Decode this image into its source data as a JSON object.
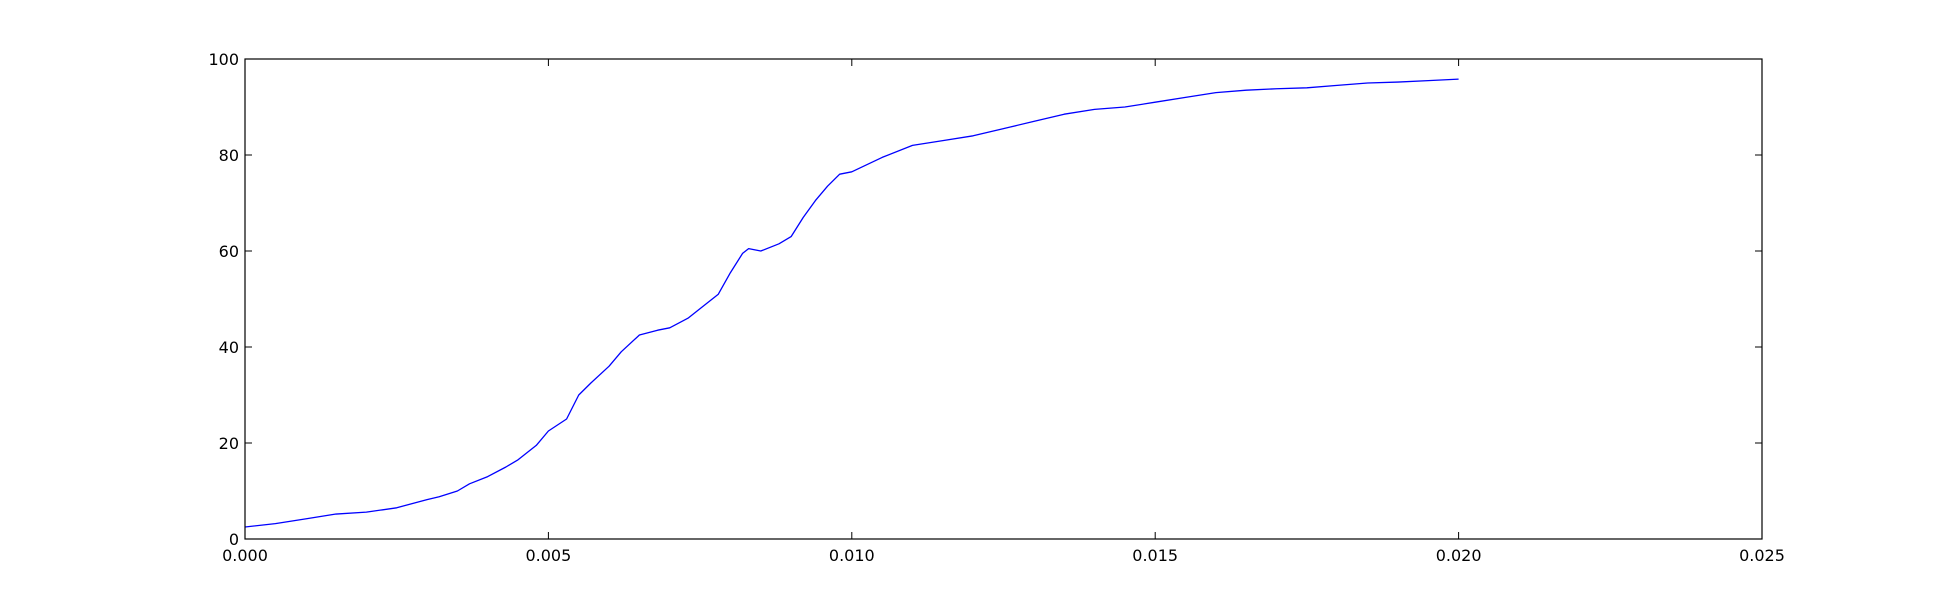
{
  "chart_data": {
    "type": "line",
    "title": "",
    "xlabel": "",
    "ylabel": "",
    "xlim": [
      0,
      0.025
    ],
    "ylim": [
      0,
      100
    ],
    "x_ticks": [
      0,
      0.005,
      0.01,
      0.015,
      0.02,
      0.025
    ],
    "x_tick_labels": [
      "0.000",
      "0.005",
      "0.010",
      "0.015",
      "0.020",
      "0.025"
    ],
    "y_ticks": [
      0,
      20,
      40,
      60,
      80,
      100
    ],
    "y_tick_labels": [
      "0",
      "20",
      "40",
      "60",
      "80",
      "100"
    ],
    "grid": false,
    "series": [
      {
        "color": "#0000ff",
        "x": [
          0,
          0.0005,
          0.001,
          0.0015,
          0.002,
          0.0025,
          0.003,
          0.0032,
          0.0035,
          0.0037,
          0.004,
          0.0043,
          0.0045,
          0.0048,
          0.005,
          0.0053,
          0.0055,
          0.0057,
          0.006,
          0.0062,
          0.0065,
          0.0068,
          0.007,
          0.0073,
          0.0075,
          0.0078,
          0.008,
          0.0082,
          0.0083,
          0.0085,
          0.0088,
          0.009,
          0.0092,
          0.0094,
          0.0096,
          0.0098,
          0.01,
          0.0105,
          0.011,
          0.0115,
          0.012,
          0.0125,
          0.013,
          0.0135,
          0.014,
          0.0145,
          0.015,
          0.0155,
          0.016,
          0.0165,
          0.017,
          0.0175,
          0.018,
          0.0185,
          0.019,
          0.0195,
          0.02
        ],
        "y": [
          2.5,
          3.2,
          4.2,
          5.2,
          5.6,
          6.5,
          8.2,
          8.8,
          10.0,
          11.5,
          13.0,
          15.0,
          16.5,
          19.5,
          22.5,
          25.0,
          30.0,
          32.5,
          36.0,
          39.0,
          42.5,
          43.5,
          44.0,
          46.0,
          48.0,
          51.0,
          55.5,
          59.5,
          60.5,
          60.0,
          61.5,
          63.0,
          67.0,
          70.5,
          73.5,
          76.0,
          76.5,
          79.5,
          82.0,
          83.0,
          84.0,
          85.5,
          87.0,
          88.5,
          89.5,
          90.0,
          91.0,
          92.0,
          93.0,
          93.5,
          93.8,
          94.0,
          94.5,
          95.0,
          95.2,
          95.5,
          95.8
        ]
      }
    ]
  }
}
